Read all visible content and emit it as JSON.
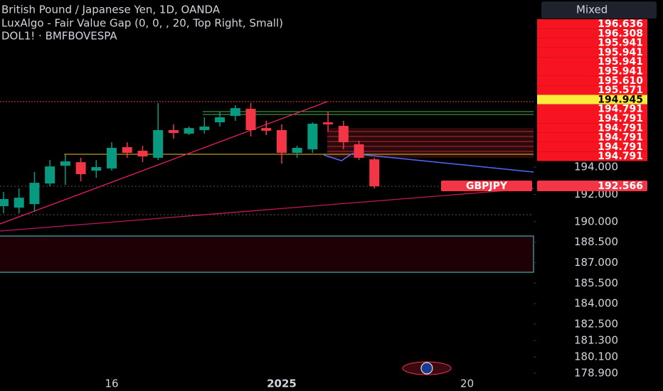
{
  "header": {
    "title": "British Pound / Japanese Yen, 1D, OANDA",
    "indicator": "LuxAlgo - Fair Value Gap (0, 0, , 20, Top Right, Small)",
    "compare": "DOL1! · BMFBOVESPA",
    "button": "Mixed"
  },
  "price_tags": [
    {
      "label": "196.636",
      "color": "#f7131f"
    },
    {
      "label": "196.308",
      "color": "#f7131f"
    },
    {
      "label": "195.941",
      "color": "#f7131f"
    },
    {
      "label": "195.941",
      "color": "#f7131f"
    },
    {
      "label": "195.941",
      "color": "#f7131f"
    },
    {
      "label": "195.941",
      "color": "#f7131f"
    },
    {
      "label": "195.610",
      "color": "#f7131f"
    },
    {
      "label": "195.571",
      "color": "#f7131f"
    },
    {
      "label": "194.945",
      "color": "#ffeb3b"
    },
    {
      "label": "194.791",
      "color": "#f7131f"
    },
    {
      "label": "194.791",
      "color": "#f7131f"
    },
    {
      "label": "194.791",
      "color": "#f7131f"
    },
    {
      "label": "194.791",
      "color": "#f7131f"
    },
    {
      "label": "194.791",
      "color": "#f7131f"
    },
    {
      "label": "194.791",
      "color": "#f7131f"
    }
  ],
  "symbol_tag": {
    "label": "GBPJPY",
    "price": "192.566",
    "color": "#f23645"
  },
  "chart_data": {
    "type": "candlestick",
    "up_color": "#089981",
    "down_color": "#f23645",
    "x": [
      0,
      1,
      2,
      3,
      4,
      5,
      6,
      7,
      8,
      9,
      10,
      11,
      12,
      13,
      14,
      15,
      16,
      17,
      18,
      19,
      20,
      21,
      22,
      23,
      24
    ],
    "open": [
      191.14,
      191.03,
      191.29,
      192.8,
      194.1,
      194.36,
      193.74,
      193.9,
      195.46,
      195.2,
      194.68,
      196.71,
      196.45,
      196.71,
      197.28,
      197.75,
      198.27,
      196.86,
      196.71,
      195.04,
      195.3,
      197.28,
      197.02,
      195.67,
      194.57
    ],
    "high": [
      192.18,
      192.44,
      193.64,
      194.52,
      194.89,
      194.68,
      194.52,
      195.82,
      195.82,
      195.56,
      198.69,
      197.13,
      196.97,
      197.65,
      198.06,
      198.53,
      198.69,
      197.39,
      197.13,
      195.56,
      197.28,
      198.06,
      197.39,
      195.93,
      194.68
    ],
    "low": [
      190.61,
      190.61,
      190.72,
      192.59,
      192.7,
      192.96,
      193.22,
      193.74,
      194.68,
      194.36,
      194.52,
      196.08,
      196.34,
      196.45,
      196.97,
      197.39,
      196.24,
      196.34,
      194.26,
      194.68,
      195.04,
      196.6,
      195.3,
      194.52,
      192.44
    ],
    "close": [
      191.66,
      191.76,
      192.85,
      194.05,
      194.42,
      193.48,
      194.0,
      195.41,
      195.04,
      194.78,
      196.71,
      196.5,
      196.86,
      196.97,
      197.65,
      198.32,
      196.71,
      196.66,
      195.04,
      195.41,
      197.18,
      197.13,
      195.82,
      194.68,
      192.59
    ],
    "xlim": [
      -0.23,
      34.3
    ],
    "xticks": [
      {
        "value": 7,
        "label": "16"
      },
      {
        "value": 18,
        "label": "2025"
      },
      {
        "value": 30,
        "label": "20"
      }
    ],
    "ylim": [
      178.64,
      206.24
    ],
    "yticks": [
      {
        "value": 194,
        "label": "194.000"
      },
      {
        "value": 192,
        "label": "192.000"
      },
      {
        "value": 190,
        "label": "190.000"
      },
      {
        "value": 188.5,
        "label": "188.500"
      },
      {
        "value": 187,
        "label": "187.000"
      },
      {
        "value": 185.5,
        "label": "185.500"
      },
      {
        "value": 184,
        "label": "184.000"
      },
      {
        "value": 182.5,
        "label": "182.500"
      },
      {
        "value": 181.3,
        "label": "181.300"
      },
      {
        "value": 180.1,
        "label": "180.100"
      },
      {
        "value": 178.9,
        "label": "178.900"
      }
    ]
  }
}
